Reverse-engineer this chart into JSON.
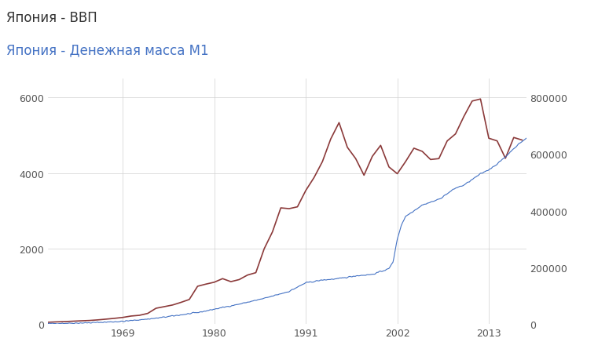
{
  "title_line1": "Япония - ВВП",
  "title_line2": "Япония - Денежная масса М1",
  "title_color1": "#333333",
  "title_color2": "#4472C4",
  "bg_color": "#ffffff",
  "grid_color": "#d0d0d0",
  "gdp_color": "#8B3A3A",
  "m1_color": "#4472C4",
  "xlim": [
    1960.0,
    2017.5
  ],
  "ylim_left": [
    0,
    6500
  ],
  "ylim_right": [
    0,
    866667
  ],
  "xticks": [
    1969,
    1980,
    1991,
    2002,
    2013
  ],
  "yticks_left": [
    0,
    2000,
    4000,
    6000
  ],
  "yticks_right": [
    0,
    200000,
    400000,
    600000,
    800000
  ],
  "gdp_years": [
    1960,
    1961,
    1962,
    1963,
    1964,
    1965,
    1966,
    1967,
    1968,
    1969,
    1970,
    1971,
    1972,
    1973,
    1974,
    1975,
    1976,
    1977,
    1978,
    1979,
    1980,
    1981,
    1982,
    1983,
    1984,
    1985,
    1986,
    1987,
    1988,
    1989,
    1990,
    1991,
    1992,
    1993,
    1994,
    1995,
    1996,
    1997,
    1998,
    1999,
    2000,
    2001,
    2002,
    2003,
    2004,
    2005,
    2006,
    2007,
    2008,
    2009,
    2010,
    2011,
    2012,
    2013,
    2014,
    2015,
    2016,
    2017
  ],
  "gdp_values": [
    44,
    54,
    61,
    72,
    82,
    91,
    107,
    127,
    148,
    172,
    209,
    228,
    278,
    415,
    458,
    502,
    571,
    648,
    998,
    1055,
    1105,
    1200,
    1120,
    1175,
    1295,
    1358,
    1990,
    2440,
    3075,
    3054,
    3103,
    3535,
    3880,
    4300,
    4900,
    5334,
    4680,
    4380,
    3940,
    4440,
    4731,
    4159,
    3980,
    4302,
    4656,
    4572,
    4356,
    4380,
    4849,
    5035,
    5495,
    5905,
    5960,
    4920,
    4850,
    4389,
    4940,
    4872
  ],
  "font_size_title": 12,
  "font_size_ticks": 9
}
